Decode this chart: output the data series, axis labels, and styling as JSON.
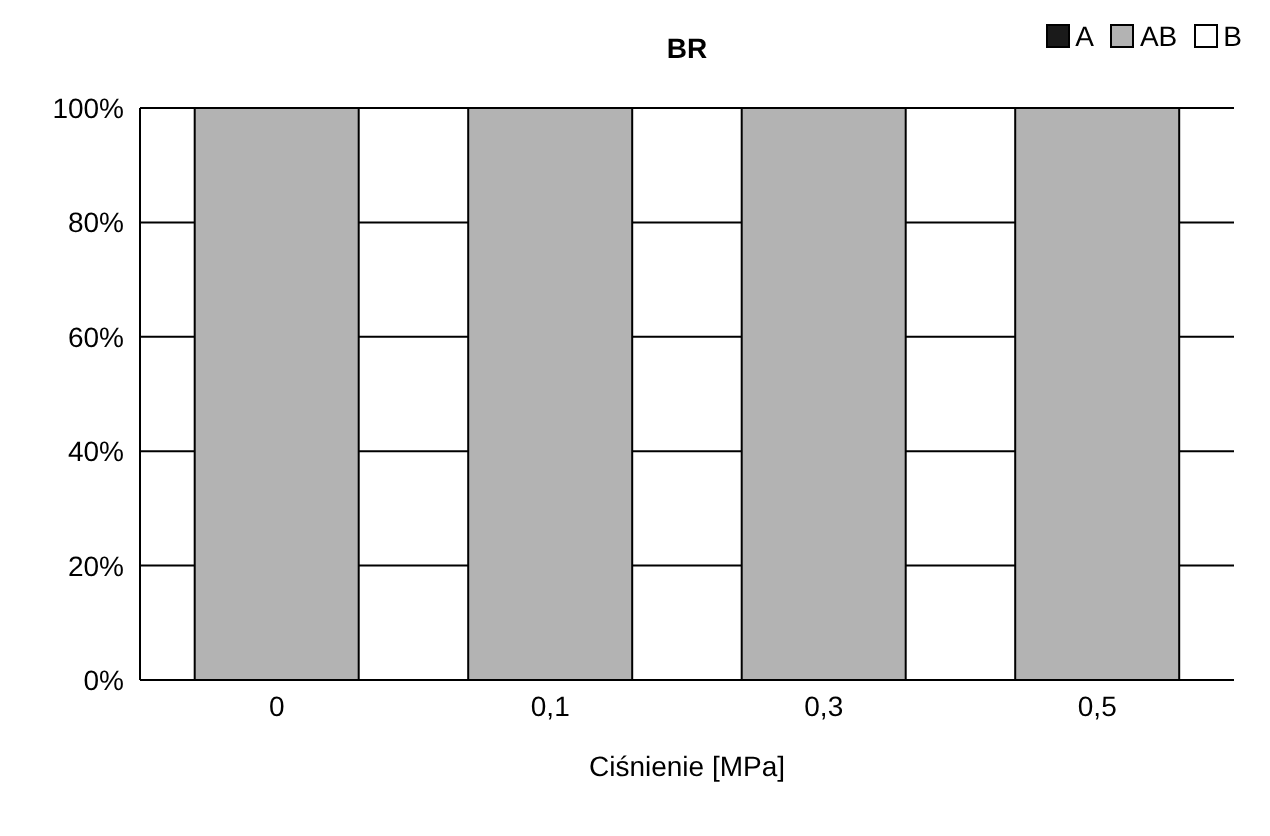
{
  "chart_data": {
    "type": "bar",
    "title": "BR",
    "xlabel": "Ciśnienie [MPa]",
    "categories": [
      "0",
      "0,1",
      "0,3",
      "0,5"
    ],
    "stacked": true,
    "series": [
      {
        "name": "A",
        "color": "#1a1a1a",
        "values": [
          0,
          0,
          0,
          0
        ]
      },
      {
        "name": "AB",
        "color": "#b3b3b3",
        "values": [
          100,
          100,
          100,
          100
        ]
      },
      {
        "name": "B",
        "color": "#ffffff",
        "values": [
          0,
          0,
          0,
          0
        ]
      }
    ],
    "ylim": [
      0,
      100
    ],
    "yticks": [
      {
        "value": 0,
        "label": "0%"
      },
      {
        "value": 20,
        "label": "20%"
      },
      {
        "value": 40,
        "label": "40%"
      },
      {
        "value": 60,
        "label": "60%"
      },
      {
        "value": 80,
        "label": "80%"
      },
      {
        "value": 100,
        "label": "100%"
      }
    ],
    "grid": "y",
    "legend": "top right"
  }
}
